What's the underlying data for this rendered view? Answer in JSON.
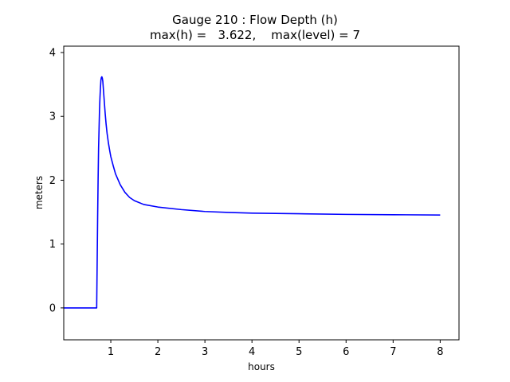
{
  "chart_data": {
    "type": "line",
    "title_line_1": "Gauge 210 : Flow Depth (h)",
    "title_line_2": "max(h) =   3.622,    max(level) = 7",
    "xlabel": "hours",
    "ylabel": "meters",
    "xlim": [
      0,
      8.4
    ],
    "ylim": [
      -0.5,
      4.1
    ],
    "xticks": [
      1,
      2,
      3,
      4,
      5,
      6,
      7,
      8
    ],
    "yticks": [
      0,
      1,
      2,
      3,
      4
    ],
    "grid": false,
    "series": [
      {
        "color": "#0000ff",
        "x": [
          0,
          0.7,
          0.7,
          0.72,
          0.73,
          0.74,
          0.75,
          0.76,
          0.77,
          0.78,
          0.79,
          0.8,
          0.81,
          0.82,
          0.83,
          0.84,
          0.86,
          0.88,
          0.9,
          0.92,
          0.95,
          0.98,
          1.0,
          1.05,
          1.1,
          1.2,
          1.3,
          1.4,
          1.5,
          1.7,
          2.0,
          2.5,
          3.0,
          3.5,
          4.0,
          5.0,
          6.0,
          7.0,
          8.0
        ],
        "y": [
          0,
          0,
          0,
          1.4,
          2.0,
          2.5,
          2.8,
          3.1,
          3.3,
          3.45,
          3.57,
          3.61,
          3.62,
          3.6,
          3.55,
          3.45,
          3.25,
          3.05,
          2.88,
          2.74,
          2.58,
          2.45,
          2.37,
          2.23,
          2.1,
          1.93,
          1.81,
          1.73,
          1.68,
          1.62,
          1.58,
          1.54,
          1.51,
          1.495,
          1.485,
          1.475,
          1.465,
          1.46,
          1.455
        ]
      }
    ]
  }
}
